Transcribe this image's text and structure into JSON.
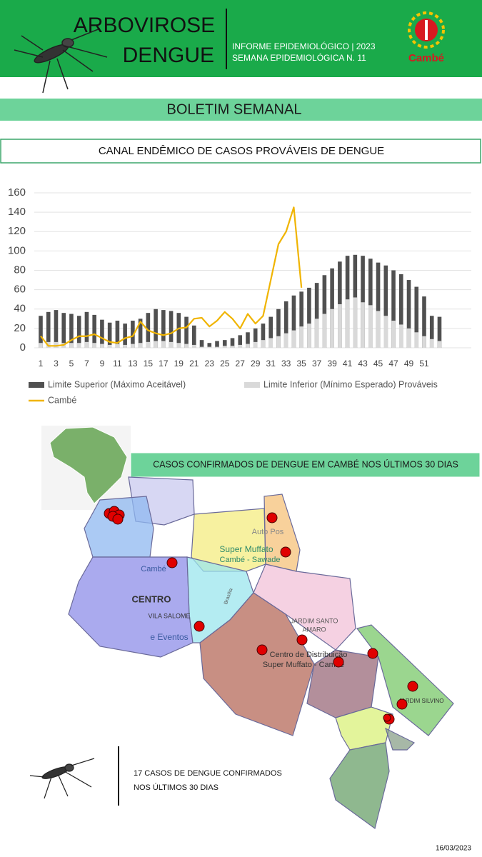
{
  "header": {
    "title_line1": "ARBOVIROSE",
    "title_line2": "DENGUE",
    "info_line1": "INFORME EPIDEMIOLÓGICO | 2023",
    "info_line2": "SEMANA EPIDEMIOLÓGICA  N. 11",
    "logo_text": "Cambé"
  },
  "banner": "BOLETIM SEMANAL",
  "chart_data": {
    "type": "bar",
    "title": "CANAL ENDÊMICO DE CASOS PROVÁVEIS DE DENGUE",
    "categories": [
      "1",
      null,
      "3",
      null,
      "5",
      null,
      "7",
      null,
      "9",
      null,
      "11",
      null,
      "13",
      null,
      "15",
      null,
      "17",
      null,
      "19",
      null,
      "21",
      null,
      "23",
      null,
      "25",
      null,
      "27",
      null,
      "29",
      null,
      "31",
      null,
      "33",
      null,
      "35",
      null,
      "37",
      null,
      "39",
      null,
      "41",
      null,
      "43",
      null,
      "45",
      null,
      "47",
      null,
      "49",
      null,
      "51",
      null,
      null
    ],
    "series": [
      {
        "name": "Limite Superior (Máximo Aceitável)",
        "color": "#505050",
        "values": [
          33,
          37,
          39,
          36,
          35,
          33,
          37,
          34,
          29,
          26,
          28,
          25,
          28,
          30,
          36,
          40,
          39,
          38,
          36,
          32,
          23,
          8,
          5,
          7,
          8,
          10,
          13,
          16,
          20,
          25,
          32,
          40,
          48,
          54,
          58,
          62,
          67,
          75,
          82,
          89,
          95,
          96,
          95,
          92,
          88,
          85,
          80,
          76,
          70,
          63,
          53,
          33,
          32
        ]
      },
      {
        "name": "Limite Inferior (Mínimo Esperado) Prováveis",
        "color": "#d9d9d9",
        "values": [
          5,
          6,
          6,
          5,
          5,
          5,
          6,
          5,
          4,
          3,
          4,
          3,
          4,
          5,
          6,
          7,
          7,
          6,
          5,
          4,
          3,
          1,
          1,
          1,
          2,
          2,
          3,
          4,
          6,
          8,
          10,
          12,
          15,
          18,
          22,
          25,
          30,
          35,
          40,
          45,
          50,
          52,
          47,
          44,
          38,
          33,
          28,
          24,
          20,
          16,
          12,
          9,
          7
        ]
      },
      {
        "name": "Cambé",
        "color": "#f0b400",
        "type": "line",
        "values": [
          12,
          2,
          2,
          3,
          8,
          12,
          12,
          14,
          10,
          6,
          5,
          10,
          12,
          27,
          18,
          15,
          13,
          15,
          20,
          21,
          30,
          31,
          22,
          28,
          37,
          30,
          20,
          35,
          25,
          33,
          70,
          107,
          120,
          145,
          62,
          null,
          null,
          null,
          null,
          null,
          null,
          null,
          null,
          null,
          null,
          null,
          null,
          null,
          null,
          null,
          null,
          null,
          null
        ]
      }
    ],
    "ylim": [
      0,
      160
    ],
    "yticks": [
      0,
      20,
      40,
      60,
      80,
      100,
      120,
      140,
      160
    ],
    "grid": true,
    "legend": "bottom"
  },
  "map": {
    "title": "CASOS CONFIRMADOS DE DENGUE EM CAMBÉ NOS ÚLTIMOS 30 DIAS",
    "labels": [
      "Cambé",
      "CENTRO",
      "VILA SALOME",
      "e Eventos",
      "Super Muffato",
      "Cambé - Sawade",
      "JARDIM SANTO",
      "AMARO",
      "Centro de Distribuição",
      "Super Muffato - Cambé",
      "Auto Pos",
      "Brasília",
      "JARDIM SILVINO"
    ],
    "summary_line1": "17 CASOS DE DENGUE CONFIRMADOS",
    "summary_line2": "NOS ÚLTIMOS 30 DIAS"
  },
  "date": "16/03/2023"
}
